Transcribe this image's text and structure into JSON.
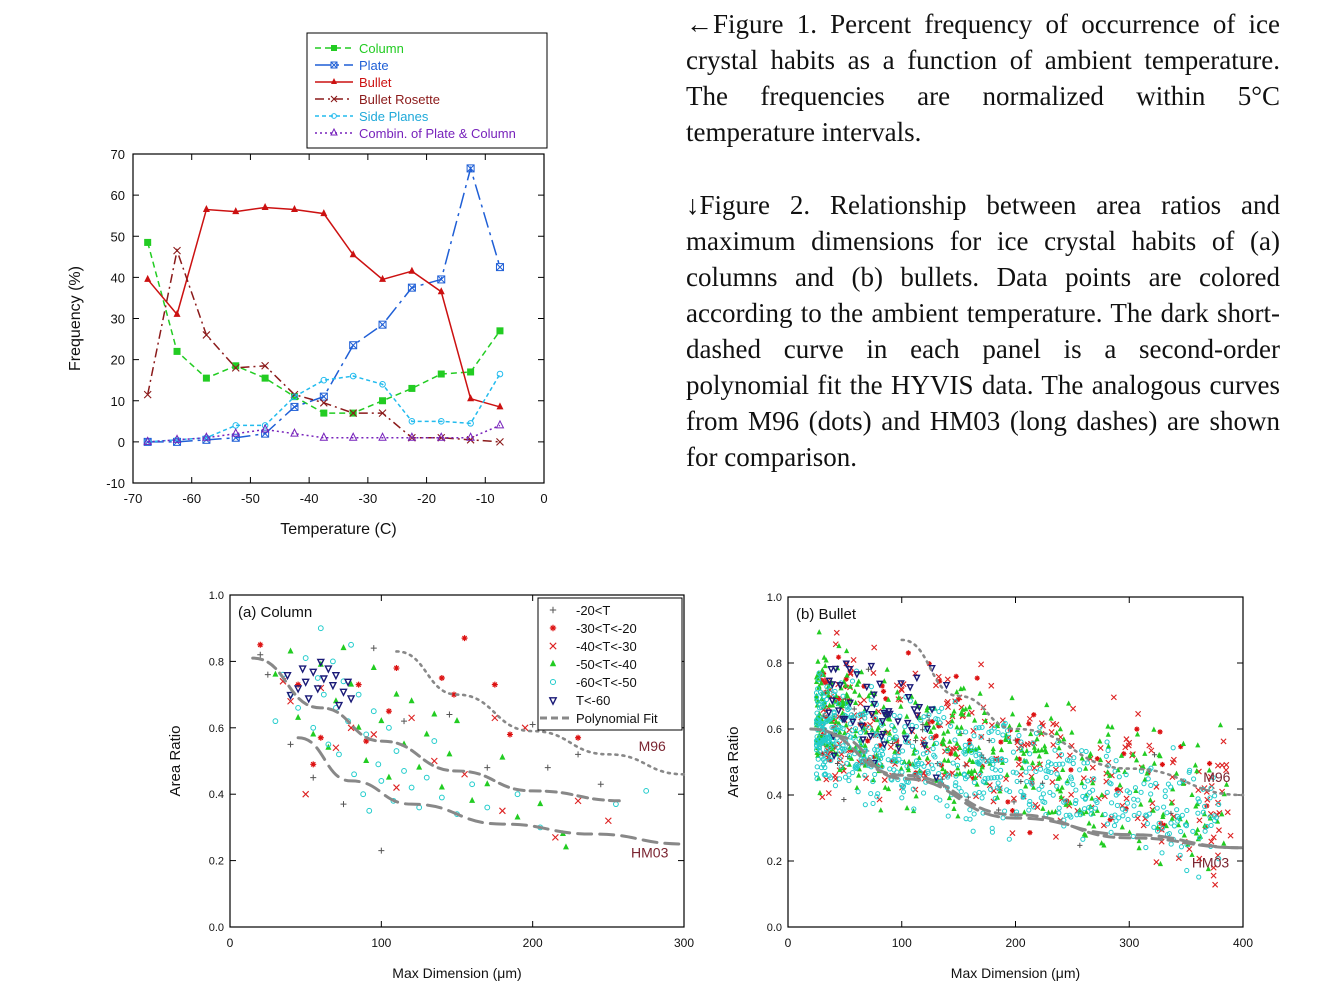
{
  "captions": {
    "fig1": "←Figure 1. Percent frequency of occurrence of ice crystal habits as a function of ambient temperature. The frequencies are normalized within 5°C temperature intervals.",
    "fig2": "↓Figure 2. Relationship between area ratios and maximum dimensions for ice crystal habits of (a) columns and (b) bullets. Data points are colored according to the ambient temperature. The dark short-dashed curve in each panel is a second-order polynomial fit the HYVIS data. The analogous curves from M96 (dots) and HM03 (long dashes) are shown for comparison."
  },
  "chart_data": [
    {
      "type": "line",
      "title": "",
      "xlabel": "Temperature (C)",
      "ylabel": "Frequency (%)",
      "xlim": [
        -70,
        0
      ],
      "ylim": [
        -10,
        70
      ],
      "xticks": [
        -70,
        -60,
        -50,
        -40,
        -30,
        -20,
        -10,
        0
      ],
      "yticks": [
        -10,
        0,
        10,
        20,
        30,
        40,
        50,
        60,
        70
      ],
      "grid": false,
      "legend_position": "top",
      "x": [
        -67.5,
        -62.5,
        -57.5,
        -52.5,
        -47.5,
        -42.5,
        -37.5,
        -32.5,
        -27.5,
        -22.5,
        -17.5,
        -12.5,
        -7.5
      ],
      "series": [
        {
          "name": "Column",
          "color": "#22cc22",
          "dash": "6,4",
          "marker": "square",
          "values": [
            48.5,
            22,
            15.5,
            18.5,
            15.5,
            11,
            7,
            7,
            10,
            13,
            16.5,
            17,
            27
          ]
        },
        {
          "name": "Plate",
          "color": "#1f5fd6",
          "dash": "16,5,3,5",
          "marker": "xbox",
          "values": [
            0,
            0,
            0.5,
            1,
            2,
            8.5,
            11,
            23.5,
            28.5,
            37.5,
            39.5,
            66.5,
            42.5
          ]
        },
        {
          "name": "Bullet",
          "color": "#cc1111",
          "dash": "",
          "marker": "triangle",
          "values": [
            39.5,
            31,
            56.5,
            56,
            57,
            56.5,
            55.5,
            45.5,
            39.5,
            41.5,
            36.5,
            10.5,
            8.5
          ]
        },
        {
          "name": "Bullet Rosette",
          "color": "#8b1a1a",
          "dash": "9,4,2,4",
          "marker": "x",
          "values": [
            11.5,
            46.5,
            26,
            18,
            18.5,
            11.5,
            9.5,
            7,
            7,
            1,
            1,
            0.5,
            0
          ]
        },
        {
          "name": "Side Planes",
          "color": "#22bbee",
          "dash": "4,3",
          "marker": "circle",
          "values": [
            0,
            0.5,
            1,
            4,
            4,
            11,
            15,
            16,
            14,
            5,
            5,
            4.5,
            16.5
          ]
        },
        {
          "name": "Combin. of Plate & Column",
          "color": "#7722bb",
          "dash": "2,3",
          "marker": "tri-open",
          "values": [
            0,
            0.5,
            1,
            2,
            3,
            2,
            1,
            1,
            1,
            1,
            1,
            1,
            4
          ]
        }
      ]
    },
    {
      "type": "scatter",
      "panel_label": "(a)  Column",
      "xlabel": "Max Dimension (μm)",
      "ylabel": "Area Ratio",
      "xlim": [
        0,
        300
      ],
      "ylim": [
        0,
        1
      ],
      "xticks": [
        0,
        100,
        200,
        300
      ],
      "yticks": [
        "0.0",
        "0.2",
        "0.4",
        "0.6",
        "0.8",
        "1.0"
      ],
      "legend_position": "top-right",
      "series": [
        {
          "name": "-20<T",
          "color": "#555555",
          "marker": "+",
          "points": [
            [
              20,
              0.82
            ],
            [
              25,
              0.76
            ],
            [
              40,
              0.55
            ],
            [
              55,
              0.45
            ],
            [
              75,
              0.37
            ],
            [
              95,
              0.84
            ],
            [
              100,
              0.23
            ],
            [
              115,
              0.62
            ],
            [
              145,
              0.64
            ],
            [
              170,
              0.48
            ],
            [
              200,
              0.61
            ],
            [
              210,
              0.48
            ],
            [
              230,
              0.52
            ],
            [
              245,
              0.43
            ]
          ]
        },
        {
          "name": "-30<T<-20",
          "color": "#dd1111",
          "marker": "*",
          "points": [
            [
              20,
              0.85
            ],
            [
              45,
              0.73
            ],
            [
              55,
              0.49
            ],
            [
              60,
              0.57
            ],
            [
              85,
              0.73
            ],
            [
              90,
              0.56
            ],
            [
              105,
              0.65
            ],
            [
              110,
              0.78
            ],
            [
              140,
              0.75
            ],
            [
              148,
              0.7
            ],
            [
              155,
              0.87
            ],
            [
              175,
              0.73
            ],
            [
              185,
              0.58
            ],
            [
              230,
              0.57
            ]
          ]
        },
        {
          "name": "-40<T<-30",
          "color": "#dd2222",
          "marker": "x",
          "points": [
            [
              35,
              0.74
            ],
            [
              40,
              0.68
            ],
            [
              50,
              0.4
            ],
            [
              60,
              0.72
            ],
            [
              70,
              0.54
            ],
            [
              80,
              0.6
            ],
            [
              95,
              0.58
            ],
            [
              110,
              0.42
            ],
            [
              120,
              0.63
            ],
            [
              135,
              0.5
            ],
            [
              155,
              0.46
            ],
            [
              175,
              0.63
            ],
            [
              180,
              0.35
            ],
            [
              195,
              0.6
            ],
            [
              215,
              0.27
            ],
            [
              230,
              0.38
            ],
            [
              250,
              0.32
            ]
          ]
        },
        {
          "name": "-50<T<-40",
          "color": "#22cc22",
          "marker": "triangle",
          "points": [
            [
              30,
              0.76
            ],
            [
              40,
              0.83
            ],
            [
              45,
              0.63
            ],
            [
              55,
              0.58
            ],
            [
              60,
              0.79
            ],
            [
              65,
              0.54
            ],
            [
              70,
              0.68
            ],
            [
              75,
              0.84
            ],
            [
              80,
              0.73
            ],
            [
              85,
              0.6
            ],
            [
              90,
              0.5
            ],
            [
              95,
              0.78
            ],
            [
              100,
              0.62
            ],
            [
              105,
              0.45
            ],
            [
              110,
              0.7
            ],
            [
              115,
              0.55
            ],
            [
              120,
              0.68
            ],
            [
              125,
              0.48
            ],
            [
              130,
              0.58
            ],
            [
              135,
              0.64
            ],
            [
              140,
              0.42
            ],
            [
              145,
              0.52
            ],
            [
              150,
              0.62
            ],
            [
              160,
              0.38
            ],
            [
              170,
              0.43
            ],
            [
              180,
              0.51
            ],
            [
              190,
              0.33
            ],
            [
              205,
              0.37
            ],
            [
              220,
              0.28
            ],
            [
              222,
              0.24
            ]
          ]
        },
        {
          "name": "-60<T<-50",
          "color": "#22cccc",
          "marker": "circle",
          "points": [
            [
              30,
              0.62
            ],
            [
              35,
              0.76
            ],
            [
              40,
              0.7
            ],
            [
              45,
              0.66
            ],
            [
              50,
              0.81
            ],
            [
              55,
              0.6
            ],
            [
              58,
              0.75
            ],
            [
              60,
              0.9
            ],
            [
              62,
              0.7
            ],
            [
              65,
              0.55
            ],
            [
              68,
              0.8
            ],
            [
              70,
              0.66
            ],
            [
              72,
              0.52
            ],
            [
              75,
              0.74
            ],
            [
              78,
              0.62
            ],
            [
              80,
              0.85
            ],
            [
              82,
              0.46
            ],
            [
              85,
              0.7
            ],
            [
              88,
              0.4
            ],
            [
              90,
              0.58
            ],
            [
              92,
              0.35
            ],
            [
              95,
              0.65
            ],
            [
              98,
              0.49
            ],
            [
              100,
              0.44
            ],
            [
              105,
              0.6
            ],
            [
              108,
              0.38
            ],
            [
              110,
              0.53
            ],
            [
              115,
              0.47
            ],
            [
              120,
              0.42
            ],
            [
              125,
              0.36
            ],
            [
              130,
              0.45
            ],
            [
              135,
              0.56
            ],
            [
              140,
              0.39
            ],
            [
              150,
              0.34
            ],
            [
              160,
              0.43
            ],
            [
              170,
              0.36
            ],
            [
              190,
              0.4
            ],
            [
              205,
              0.3
            ],
            [
              255,
              0.37
            ],
            [
              275,
              0.41
            ]
          ]
        },
        {
          "name": "T<-60",
          "color": "#1a1a77",
          "marker": "tri-down",
          "points": [
            [
              38,
              0.76
            ],
            [
              40,
              0.7
            ],
            [
              45,
              0.72
            ],
            [
              48,
              0.78
            ],
            [
              50,
              0.74
            ],
            [
              52,
              0.69
            ],
            [
              55,
              0.77
            ],
            [
              58,
              0.72
            ],
            [
              60,
              0.8
            ],
            [
              62,
              0.75
            ],
            [
              65,
              0.78
            ],
            [
              68,
              0.73
            ],
            [
              70,
              0.76
            ],
            [
              72,
              0.67
            ],
            [
              75,
              0.71
            ],
            [
              78,
              0.74
            ],
            [
              80,
              0.69
            ]
          ]
        }
      ],
      "curves": [
        {
          "name": "Polynomial Fit",
          "color": "#888888",
          "dash": "10,6",
          "fn": "poly_a",
          "x": [
            15,
            60,
            100,
            150,
            200,
            260
          ],
          "y": [
            0.81,
            0.66,
            0.56,
            0.47,
            0.41,
            0.38
          ]
        },
        {
          "name": "M96",
          "color": "#888888",
          "dash": "2,5",
          "fn": "m96_a",
          "x": [
            110,
            150,
            200,
            250,
            300
          ],
          "y": [
            0.83,
            0.7,
            0.59,
            0.52,
            0.46
          ]
        },
        {
          "name": "HM03",
          "color": "#888888",
          "dash": "14,8",
          "fn": "hm03_a",
          "x": [
            45,
            80,
            120,
            180,
            240,
            300
          ],
          "y": [
            0.57,
            0.44,
            0.37,
            0.31,
            0.28,
            0.25
          ]
        }
      ],
      "curve_labels": [
        "M96",
        "HM03"
      ]
    },
    {
      "type": "scatter",
      "panel_label": "(b)  Bullet",
      "xlabel": "Max Dimension (μm)",
      "ylabel": "Area Ratio",
      "xlim": [
        0,
        400
      ],
      "ylim": [
        0,
        1
      ],
      "xticks": [
        0,
        100,
        200,
        300,
        400
      ],
      "yticks": [
        "0.0",
        "0.2",
        "0.4",
        "0.6",
        "0.8",
        "1.0"
      ],
      "series_note": "same six temperature classes as panel (a)",
      "point_cloud": {
        "-20<T": {
          "color": "#555555",
          "marker": "+",
          "n": 40,
          "xrange": [
            30,
            360
          ],
          "center": 0.45,
          "spread": 0.14
        },
        "-30<T<-20": {
          "color": "#dd1111",
          "marker": "*",
          "n": 80,
          "xrange": [
            30,
            390
          ],
          "center": 0.5,
          "spread": 0.16
        },
        "-40<T<-30": {
          "color": "#dd2222",
          "marker": "x",
          "n": 260,
          "xrange": [
            30,
            390
          ],
          "center": 0.48,
          "spread": 0.18
        },
        "-50<T<-40": {
          "color": "#22cc22",
          "marker": "triangle",
          "n": 420,
          "xrange": [
            25,
            390
          ],
          "center": 0.46,
          "spread": 0.16
        },
        "-60<T<-50": {
          "color": "#22cccc",
          "marker": "circle",
          "n": 620,
          "xrange": [
            25,
            380
          ],
          "center": 0.42,
          "spread": 0.13
        },
        "T<-60": {
          "color": "#1a1a77",
          "marker": "tri-down",
          "n": 55,
          "xrange": [
            35,
            140
          ],
          "center": 0.52,
          "spread": 0.12
        }
      },
      "curves": [
        {
          "name": "Polynomial Fit",
          "color": "#888888",
          "dash": "10,6",
          "x": [
            20,
            100,
            200,
            300,
            400
          ],
          "y": [
            0.6,
            0.46,
            0.34,
            0.27,
            0.24
          ]
        },
        {
          "name": "M96",
          "color": "#888888",
          "dash": "2,5",
          "x": [
            100,
            150,
            200,
            300,
            400
          ],
          "y": [
            0.87,
            0.7,
            0.6,
            0.48,
            0.4
          ]
        },
        {
          "name": "HM03",
          "color": "#888888",
          "dash": "14,8",
          "x": [
            40,
            100,
            200,
            300,
            400
          ],
          "y": [
            0.58,
            0.45,
            0.33,
            0.28,
            0.24
          ]
        }
      ],
      "curve_labels": [
        "M96",
        "HM03"
      ]
    }
  ]
}
